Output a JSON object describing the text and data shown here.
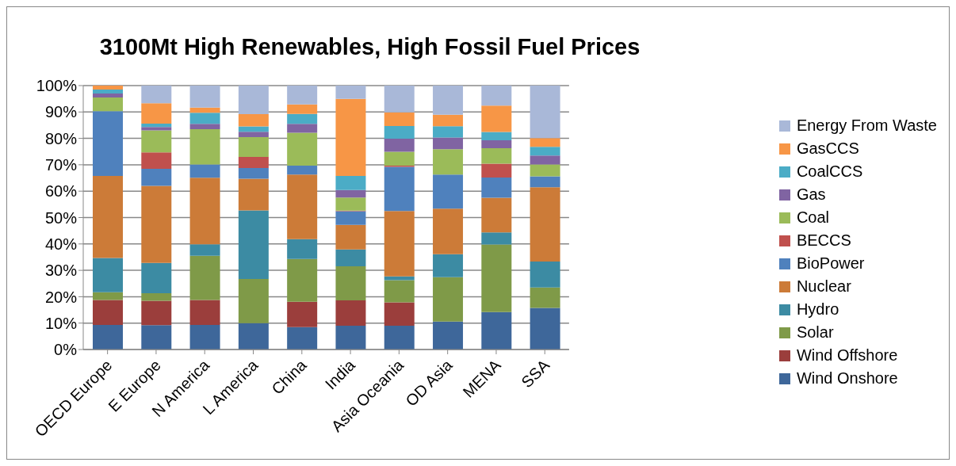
{
  "chart_data": {
    "type": "bar",
    "stacked": true,
    "title": "3100Mt High Renewables, High Fossil Fuel Prices",
    "categories": [
      "OECD Europe",
      "E Europe",
      "N America",
      "L America",
      "China",
      "India",
      "Asia Oceania",
      "OD Asia",
      "MENA",
      "SSA"
    ],
    "series": [
      {
        "name": "Wind Onshore",
        "color": "#3e679a",
        "values": [
          9.3,
          9.2,
          9.3,
          10,
          8.5,
          9,
          9,
          10.6,
          14.2,
          15.8
        ]
      },
      {
        "name": "Wind Offshore",
        "color": "#9b3e3c",
        "values": [
          9.5,
          9.3,
          9.5,
          0,
          9.6,
          9.6,
          8.9,
          0,
          0,
          0
        ]
      },
      {
        "name": "Solar",
        "color": "#7f9a48",
        "values": [
          2.9,
          2.8,
          16.7,
          16.7,
          16.2,
          12.9,
          8.4,
          16.8,
          25.6,
          7.7
        ]
      },
      {
        "name": "Hydro",
        "color": "#3c8ba3",
        "values": [
          13,
          11.5,
          4.4,
          26,
          7.5,
          6.4,
          1.4,
          8.7,
          4.6,
          9.8
        ]
      },
      {
        "name": "Nuclear",
        "color": "#cc7b38",
        "values": [
          31.1,
          29.2,
          25.2,
          12,
          24.5,
          9.3,
          24.8,
          17.3,
          13.1,
          28.2
        ]
      },
      {
        "name": "BioPower",
        "color": "#4f81bd",
        "values": [
          24.5,
          6.5,
          5,
          4.1,
          3.4,
          5.2,
          16.7,
          12.9,
          7.7,
          4.1
        ]
      },
      {
        "name": "BECCS",
        "color": "#c0504d",
        "values": [
          0,
          6.2,
          0,
          4.2,
          0,
          0.2,
          0.5,
          0,
          5.2,
          0
        ]
      },
      {
        "name": "Coal",
        "color": "#9bbb59",
        "values": [
          5.2,
          8.3,
          13.4,
          7.5,
          12.4,
          5,
          5.2,
          9.6,
          5.9,
          4.5
        ]
      },
      {
        "name": "Gas",
        "color": "#8064a2",
        "values": [
          1.5,
          1.3,
          2,
          2,
          3.4,
          2.8,
          5,
          4.4,
          3,
          3.4
        ]
      },
      {
        "name": "CoalCCS",
        "color": "#4bacc6",
        "values": [
          1.5,
          1.3,
          4.2,
          2,
          3.8,
          5.4,
          4.8,
          4.3,
          3.1,
          3.3
        ]
      },
      {
        "name": "GasCCS",
        "color": "#f79646",
        "values": [
          1.5,
          7.7,
          2,
          4.7,
          3.6,
          29.2,
          5.2,
          4.4,
          10,
          3.3
        ]
      },
      {
        "name": "Energy From Waste",
        "color": "#a9b8d8",
        "values": [
          0,
          6.7,
          8.3,
          10.8,
          7.1,
          5,
          10.1,
          11,
          7.6,
          19.9
        ]
      }
    ],
    "ylim": [
      0,
      100
    ],
    "yticks": [
      {
        "value": 0,
        "label": "0%"
      },
      {
        "value": 10,
        "label": "10%"
      },
      {
        "value": 20,
        "label": "20%"
      },
      {
        "value": 30,
        "label": "30%"
      },
      {
        "value": 40,
        "label": "40%"
      },
      {
        "value": 50,
        "label": "50%"
      },
      {
        "value": 60,
        "label": "60%"
      },
      {
        "value": 70,
        "label": "70%"
      },
      {
        "value": 80,
        "label": "80%"
      },
      {
        "value": 90,
        "label": "90%"
      },
      {
        "value": 100,
        "label": "100%"
      }
    ],
    "grid": "y",
    "legend": "right"
  }
}
